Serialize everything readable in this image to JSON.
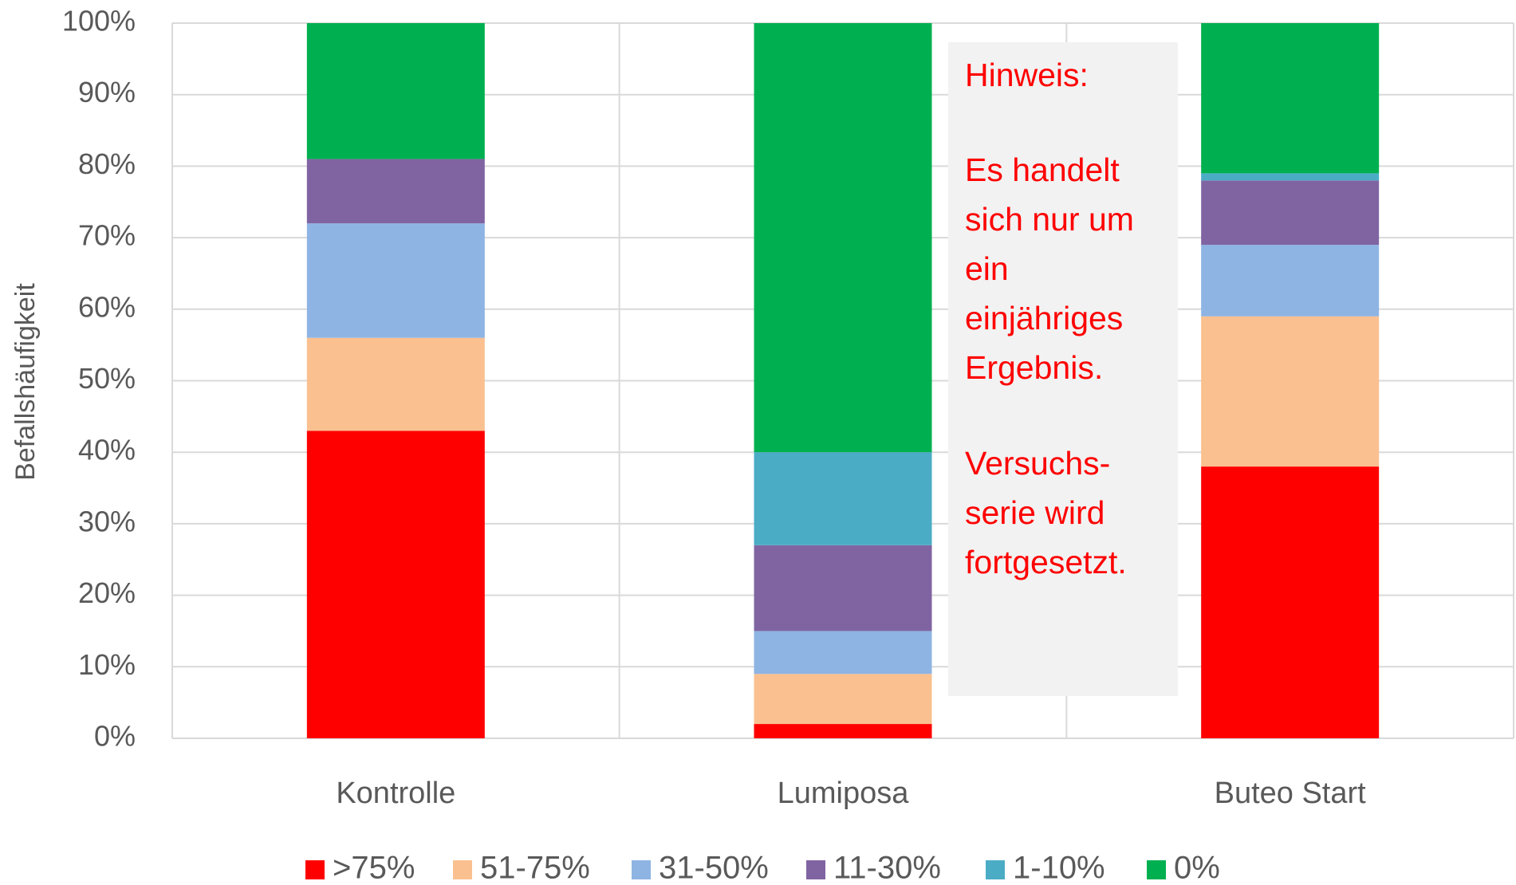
{
  "chart_data": {
    "type": "stacked_bar",
    "y_label": "Befallshäufigkeit",
    "categories": [
      "Kontrolle",
      "Lumiposa",
      "Buteo Start"
    ],
    "series": [
      {
        "name": ">75%",
        "color": "#ff0000",
        "values": [
          43,
          2,
          38
        ]
      },
      {
        "name": "51-75%",
        "color": "#fac090",
        "values": [
          13,
          7,
          21
        ]
      },
      {
        "name": "31-50%",
        "color": "#8eb4e3",
        "values": [
          16,
          6,
          10
        ]
      },
      {
        "name": "11-30%",
        "color": "#8064a2",
        "values": [
          9,
          12,
          9
        ]
      },
      {
        "name": "1-10%",
        "color": "#4bacc6",
        "values": [
          0,
          13,
          1
        ]
      },
      {
        "name": "0%",
        "color": "#00b050",
        "values": [
          19,
          60,
          21
        ]
      }
    ],
    "ylim": [
      0,
      100
    ],
    "yticks": [
      {
        "value": 0,
        "label": "0%"
      },
      {
        "value": 10,
        "label": "10%"
      },
      {
        "value": 20,
        "label": "20%"
      },
      {
        "value": 30,
        "label": "30%"
      },
      {
        "value": 40,
        "label": "40%"
      },
      {
        "value": 50,
        "label": "50%"
      },
      {
        "value": 60,
        "label": "60%"
      },
      {
        "value": 70,
        "label": "70%"
      },
      {
        "value": 80,
        "label": "80%"
      },
      {
        "value": 90,
        "label": "90%"
      },
      {
        "value": 100,
        "label": "100%"
      }
    ],
    "grid": true,
    "legend": "bottom",
    "annotation": {
      "title": "Hinweis:",
      "paragraphs": [
        [
          "Es handelt",
          "sich nur um",
          "ein",
          "einjähriges",
          "Ergebnis."
        ],
        [
          "Versuchs-",
          "serie wird",
          "fortgesetzt."
        ]
      ],
      "color": "#ff0000"
    }
  }
}
